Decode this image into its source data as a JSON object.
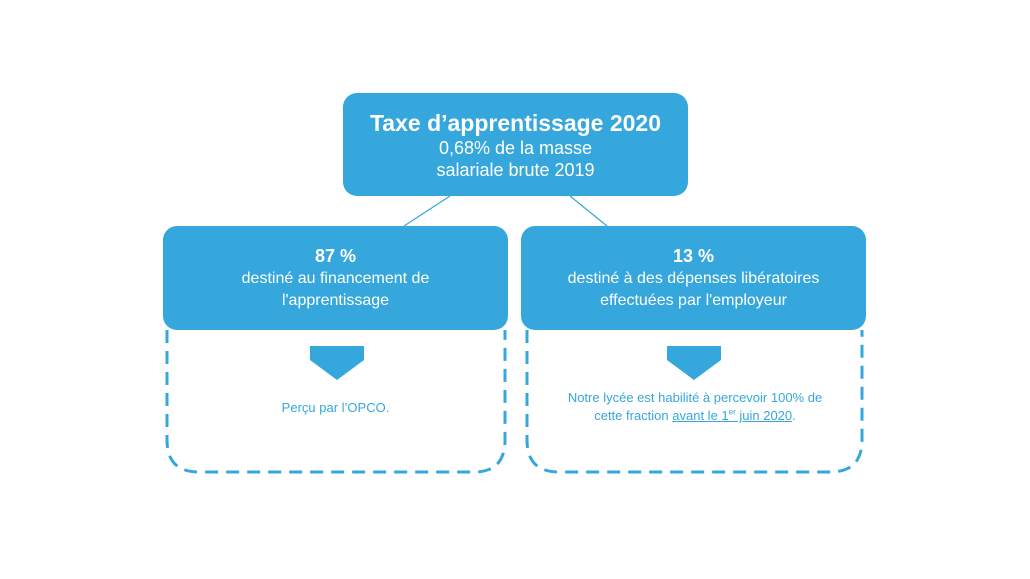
{
  "top": {
    "title": "Taxe d’apprentissage 2020",
    "line1": "0,68% de la masse",
    "line2": "salariale brute 2019"
  },
  "left": {
    "percent": "87 %",
    "line1": "destiné au financement de",
    "line2": "l'apprentissage",
    "note": "Perçu par l’OPCO."
  },
  "right": {
    "percent": "13 %",
    "line1": "destiné à des dépenses libératoires",
    "line2": "effectuées par l'employeur",
    "note_line1": "Notre lycée est habilité à percevoir 100% de",
    "note_line2_prefix": "cette fraction ",
    "note_underline_a": "avant le 1",
    "note_superscript": "er",
    "note_underline_b": " juin 2020",
    "note_suffix": "."
  },
  "colors": {
    "box_fill": "#35a7dc",
    "box_text": "#ffffff",
    "dashed_border": "#35a7dc",
    "connector": "#35a7dc"
  }
}
